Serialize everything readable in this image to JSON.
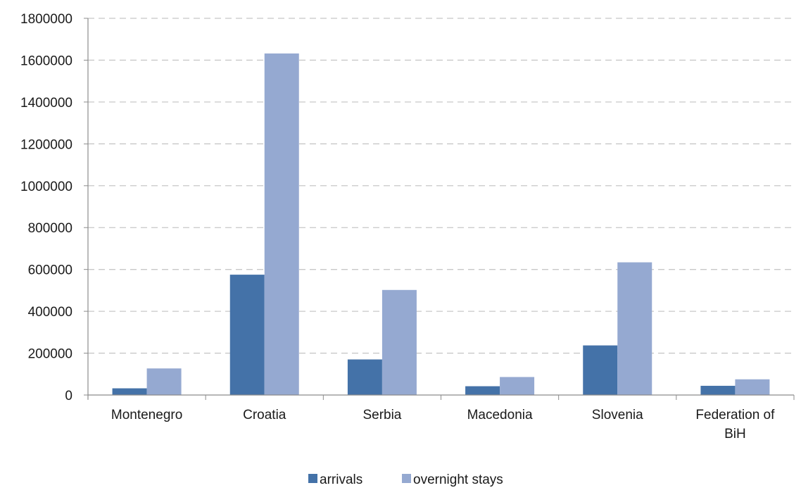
{
  "chart_data": {
    "type": "bar",
    "categories": [
      [
        "Montenegro"
      ],
      [
        "Croatia"
      ],
      [
        "Serbia"
      ],
      [
        "Macedonia"
      ],
      [
        "Slovenia"
      ],
      [
        "Federation of",
        "BiH"
      ]
    ],
    "series": [
      {
        "name": "arrivals",
        "color": "#4472a8",
        "values": [
          32000,
          575000,
          170000,
          42000,
          237000,
          44000
        ]
      },
      {
        "name": "overnight stays",
        "color": "#95a9d1",
        "values": [
          127000,
          1632000,
          502000,
          86000,
          634000,
          75000
        ]
      }
    ],
    "ylim": [
      0,
      1800000
    ],
    "yticks": [
      "0",
      "200000",
      "400000",
      "600000",
      "800000",
      "1000000",
      "1200000",
      "1400000",
      "1600000",
      "1800000"
    ],
    "ytick_values": [
      0,
      200000,
      400000,
      600000,
      800000,
      1000000,
      1200000,
      1400000,
      1600000,
      1800000
    ],
    "grid": "horizontal dashed",
    "legend_position": "bottom-center",
    "grid_color": "#c8c8c8",
    "axis_color": "#8c8c8c"
  }
}
